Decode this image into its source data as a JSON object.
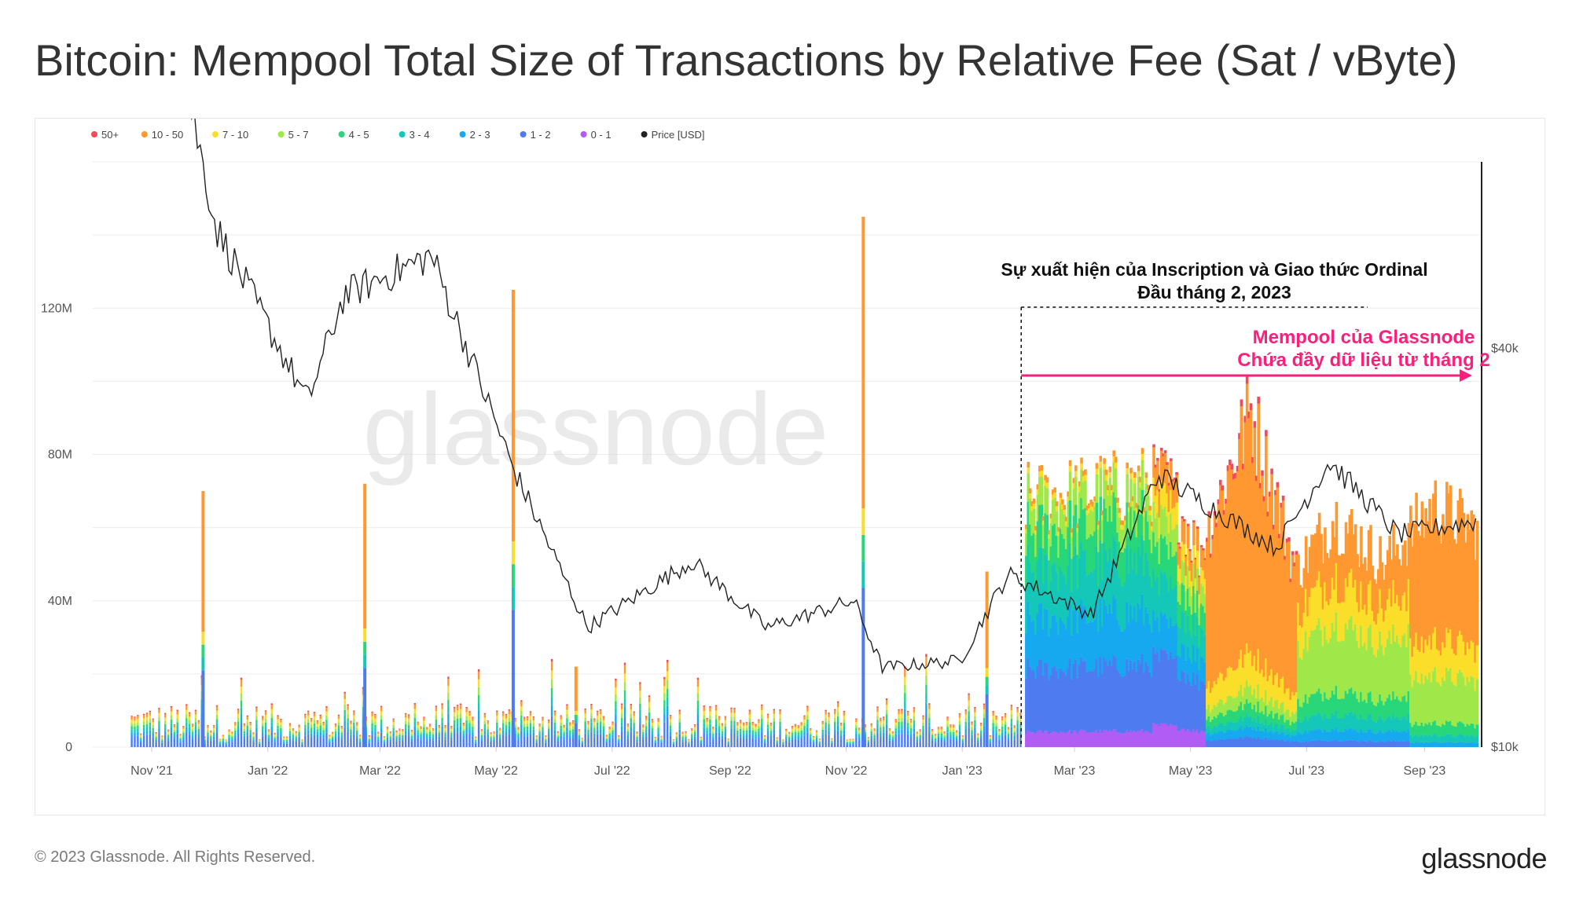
{
  "title": "Bitcoin: Mempool Total Size of Transactions by Relative Fee (Sat / vByte)",
  "footer": {
    "copyright": "© 2023 Glassnode. All Rights Reserved.",
    "logo": "glassnode"
  },
  "watermark": "glassnode",
  "annotations": {
    "inscription_line1": "Sự xuất hiện của Inscription và Giao thức Ordinal",
    "inscription_line2": "Đầu tháng 2, 2023",
    "mempool_line1": "Mempool của Glassnode",
    "mempool_line2": "Chứa đầy dữ liệu từ tháng 2",
    "pink_color": "#ff1f7a"
  },
  "chart_data": {
    "type": "area",
    "x_ticks": [
      "Nov '21",
      "Jan '22",
      "Mar '22",
      "May '22",
      "Jul '22",
      "Sep '22",
      "Nov '22",
      "Jan '23",
      "Mar '23",
      "May '23",
      "Jul '23",
      "Sep '23"
    ],
    "y_ticks": [
      "0",
      "40M",
      "80M",
      "120M"
    ],
    "y_right_ticks": [
      "$10k",
      "$40k"
    ],
    "ylim": [
      0,
      160
    ],
    "y_right_ticks_values": [
      10000,
      40000
    ],
    "series": [
      {
        "name": "50+",
        "color": "#f2495c"
      },
      {
        "name": "10 - 50",
        "color": "#ff9830"
      },
      {
        "name": "7 - 10",
        "color": "#fade2a"
      },
      {
        "name": "5 - 7",
        "color": "#a0e84a"
      },
      {
        "name": "4 - 5",
        "color": "#29d67a"
      },
      {
        "name": "3 - 4",
        "color": "#14c7b8"
      },
      {
        "name": "2 - 3",
        "color": "#16a9f0"
      },
      {
        "name": "1 - 2",
        "color": "#4e7cf0"
      },
      {
        "name": "0 - 1",
        "color": "#b05cf5"
      },
      {
        "name": "Price [USD]",
        "color": "#222222"
      }
    ],
    "spikes_total_M": [
      {
        "date": "2021-11-28",
        "value": 70
      },
      {
        "date": "2022-02-21",
        "value": 72
      },
      {
        "date": "2022-05-10",
        "value": 125
      },
      {
        "date": "2022-06-12",
        "value": 22
      },
      {
        "date": "2022-11-10",
        "value": 145
      },
      {
        "date": "2023-01-14",
        "value": 48
      }
    ],
    "stacked_level_M": [
      {
        "date": "2023-02-05",
        "value": 70
      },
      {
        "date": "2023-03-20",
        "value": 73
      },
      {
        "date": "2023-04-18",
        "value": 75
      },
      {
        "date": "2023-05-05",
        "value": 55
      },
      {
        "date": "2023-06-01",
        "value": 95
      },
      {
        "date": "2023-06-25",
        "value": 50
      },
      {
        "date": "2023-07-15",
        "value": 65
      },
      {
        "date": "2023-08-10",
        "value": 52
      },
      {
        "date": "2023-09-05",
        "value": 68
      },
      {
        "date": "2023-09-25",
        "value": 62
      }
    ],
    "price_usd": [
      {
        "date": "2021-10-20",
        "value": 62000
      },
      {
        "date": "2021-11-10",
        "value": 66000
      },
      {
        "date": "2021-12-05",
        "value": 49000
      },
      {
        "date": "2022-01-22",
        "value": 36000
      },
      {
        "date": "2022-02-10",
        "value": 44000
      },
      {
        "date": "2022-03-28",
        "value": 47000
      },
      {
        "date": "2022-05-10",
        "value": 31000
      },
      {
        "date": "2022-06-18",
        "value": 19000
      },
      {
        "date": "2022-08-12",
        "value": 24000
      },
      {
        "date": "2022-09-20",
        "value": 19000
      },
      {
        "date": "2022-11-05",
        "value": 21000
      },
      {
        "date": "2022-11-20",
        "value": 16000
      },
      {
        "date": "2022-12-31",
        "value": 16500
      },
      {
        "date": "2023-01-25",
        "value": 23000
      },
      {
        "date": "2023-03-10",
        "value": 20000
      },
      {
        "date": "2023-04-14",
        "value": 30500
      },
      {
        "date": "2023-06-15",
        "value": 25000
      },
      {
        "date": "2023-07-13",
        "value": 31500
      },
      {
        "date": "2023-08-18",
        "value": 26000
      },
      {
        "date": "2023-09-28",
        "value": 27000
      }
    ],
    "grid": true,
    "legend_position": "top-left"
  }
}
